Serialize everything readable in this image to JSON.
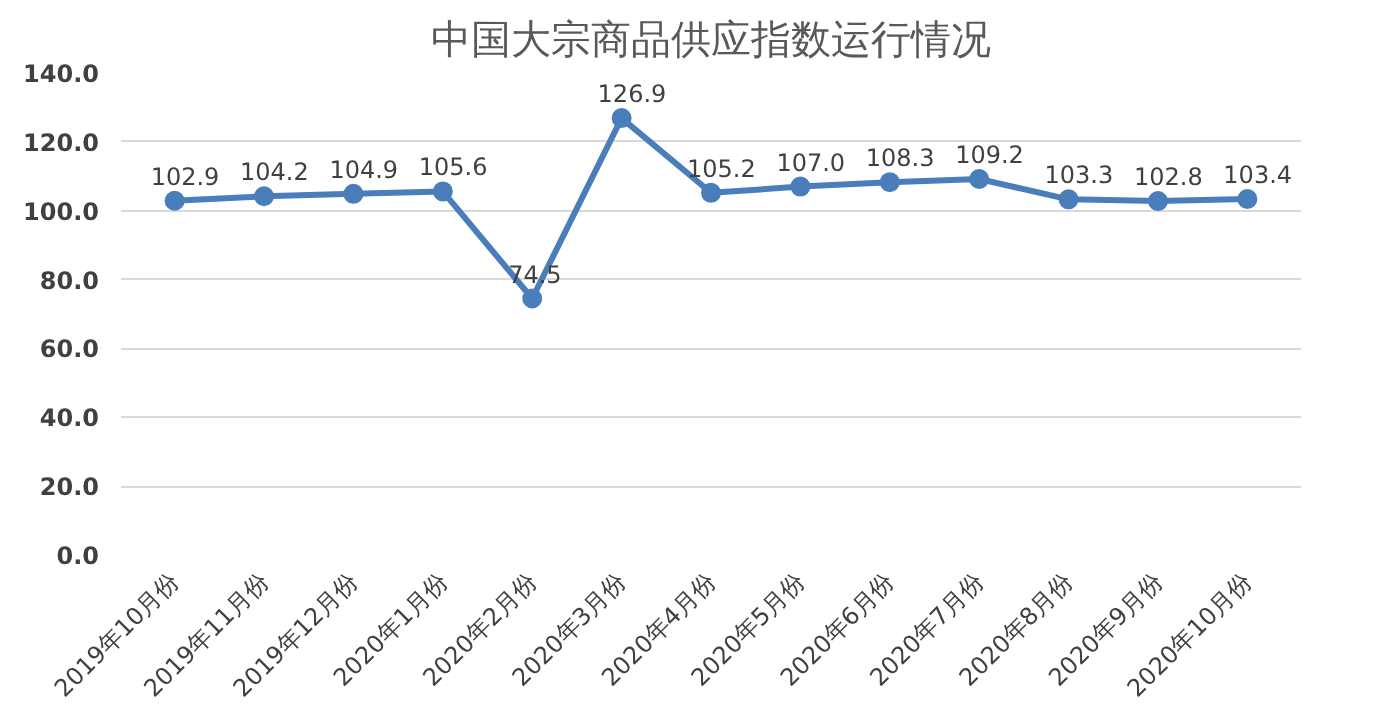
{
  "chart_data": {
    "type": "line",
    "title": "中国大宗商品供应指数运行情况",
    "categories": [
      "2019年10月份",
      "2019年11月份",
      "2019年12月份",
      "2020年1月份",
      "2020年2月份",
      "2020年3月份",
      "2020年4月份",
      "2020年5月份",
      "2020年6月份",
      "2020年7月份",
      "2020年8月份",
      "2020年9月份",
      "2020年10月份"
    ],
    "series": [
      {
        "color": "#4a7ebb",
        "values": [
          102.9,
          104.2,
          104.9,
          105.6,
          74.5,
          126.9,
          105.2,
          107.0,
          108.3,
          109.2,
          103.3,
          102.8,
          103.4
        ]
      }
    ],
    "ylim": [
      0,
      140
    ],
    "yticks": [
      {
        "value": 0,
        "label": "0.0"
      },
      {
        "value": 20,
        "label": "20.0"
      },
      {
        "value": 40,
        "label": "40.0"
      },
      {
        "value": 60,
        "label": "60.0"
      },
      {
        "value": 80,
        "label": "80.0"
      },
      {
        "value": 100,
        "label": "100.0"
      },
      {
        "value": 120,
        "label": "120.0"
      },
      {
        "value": 140,
        "label": "140.0"
      }
    ],
    "value_labels": [
      "102.9",
      "104.2",
      "104.9",
      "105.6",
      "74.5",
      "126.9",
      "105.2",
      "107.0",
      "108.3",
      "109.2",
      "103.3",
      "102.8",
      "103.4"
    ],
    "grid": "y",
    "marker": "circle",
    "line_style": "solid"
  }
}
